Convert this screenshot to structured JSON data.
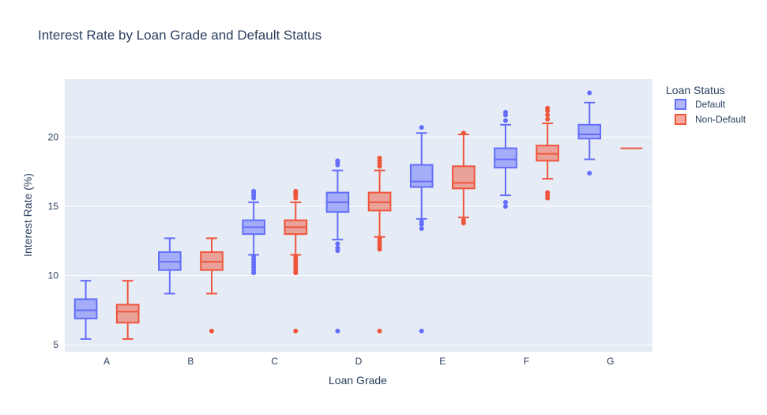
{
  "chart_data": {
    "type": "box",
    "title": "Interest Rate by Loan Grade and Default Status",
    "xlabel": "Loan Grade",
    "ylabel": "Interest Rate (%)",
    "categories": [
      "A",
      "B",
      "C",
      "D",
      "E",
      "F",
      "G"
    ],
    "ylim": [
      4.5,
      24.2
    ],
    "yticks": [
      5,
      10,
      15,
      20
    ],
    "grid": true,
    "legend": {
      "title": "Loan Status",
      "placement": "right"
    },
    "series": [
      {
        "name": "Default",
        "color": "#636efa",
        "fill": "rgba(99,110,250,0.5)",
        "boxes": [
          {
            "category": "A",
            "whisker_low": 5.42,
            "q1": 6.9,
            "median": 7.5,
            "q3": 8.3,
            "whisker_high": 9.63,
            "outliers": []
          },
          {
            "category": "B",
            "whisker_low": 8.7,
            "q1": 10.4,
            "median": 11.0,
            "q3": 11.7,
            "whisker_high": 12.7,
            "outliers": []
          },
          {
            "category": "C",
            "whisker_low": 11.5,
            "q1": 13.0,
            "median": 13.5,
            "q3": 14.0,
            "whisker_high": 15.3,
            "outliers": [
              10.2,
              10.4,
              10.6,
              10.8,
              11.0,
              11.2,
              11.4,
              15.6,
              15.8,
              16.0,
              16.1
            ]
          },
          {
            "category": "D",
            "whisker_low": 12.6,
            "q1": 14.6,
            "median": 15.3,
            "q3": 16.0,
            "whisker_high": 17.6,
            "outliers": [
              6.0,
              11.8,
              12.0,
              12.3,
              18.0,
              18.2,
              18.3
            ]
          },
          {
            "category": "E",
            "whisker_low": 14.1,
            "q1": 16.4,
            "median": 16.8,
            "q3": 18.0,
            "whisker_high": 20.3,
            "outliers": [
              6.0,
              13.4,
              13.7,
              13.9,
              20.7
            ]
          },
          {
            "category": "F",
            "whisker_low": 15.8,
            "q1": 17.8,
            "median": 18.4,
            "q3": 19.2,
            "whisker_high": 20.9,
            "outliers": [
              15.0,
              15.3,
              21.2,
              21.6,
              21.8
            ]
          },
          {
            "category": "G",
            "whisker_low": 18.4,
            "q1": 19.9,
            "median": 20.2,
            "q3": 20.9,
            "whisker_high": 22.5,
            "outliers": [
              17.4,
              23.2
            ]
          }
        ]
      },
      {
        "name": "Non-Default",
        "color": "#ef553b",
        "fill": "rgba(239,85,59,0.5)",
        "boxes": [
          {
            "category": "A",
            "whisker_low": 5.42,
            "q1": 6.6,
            "median": 7.4,
            "q3": 7.9,
            "whisker_high": 9.63,
            "outliers": []
          },
          {
            "category": "B",
            "whisker_low": 8.7,
            "q1": 10.4,
            "median": 11.0,
            "q3": 11.7,
            "whisker_high": 12.7,
            "outliers": [
              6.0
            ]
          },
          {
            "category": "C",
            "whisker_low": 11.5,
            "q1": 13.0,
            "median": 13.5,
            "q3": 14.0,
            "whisker_high": 15.3,
            "outliers": [
              6.0,
              10.2,
              10.4,
              10.6,
              10.8,
              11.0,
              11.2,
              11.4,
              15.6,
              15.8,
              16.0,
              16.1
            ]
          },
          {
            "category": "D",
            "whisker_low": 12.8,
            "q1": 14.7,
            "median": 15.3,
            "q3": 16.0,
            "whisker_high": 17.6,
            "outliers": [
              6.0,
              11.9,
              12.1,
              12.3,
              12.5,
              12.7,
              17.9,
              18.1,
              18.3,
              18.5
            ]
          },
          {
            "category": "E",
            "whisker_low": 14.2,
            "q1": 16.3,
            "median": 16.7,
            "q3": 17.9,
            "whisker_high": 20.2,
            "outliers": [
              13.8,
              14.0,
              20.3
            ]
          },
          {
            "category": "F",
            "whisker_low": 17.0,
            "q1": 18.3,
            "median": 18.8,
            "q3": 19.4,
            "whisker_high": 21.0,
            "outliers": [
              15.6,
              15.8,
              16.0,
              21.3,
              21.6,
              21.9,
              22.1
            ]
          },
          {
            "category": "G",
            "whisker_low": 19.2,
            "q1": 19.2,
            "median": 19.2,
            "q3": 19.2,
            "whisker_high": 19.2,
            "outliers": []
          }
        ]
      }
    ]
  }
}
